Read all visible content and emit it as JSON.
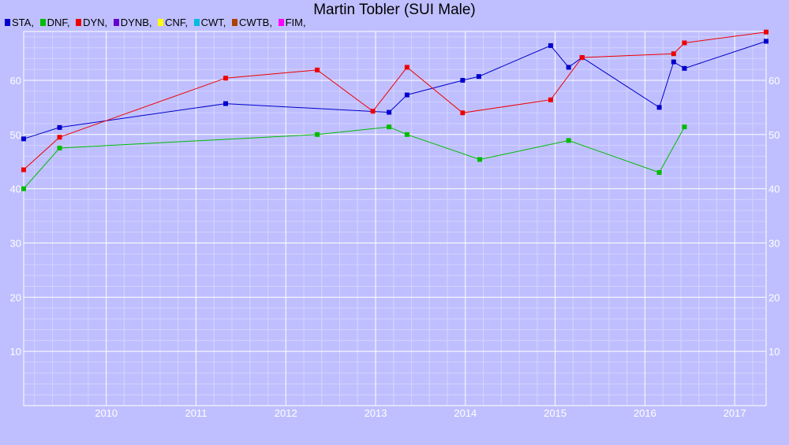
{
  "chart_data": {
    "type": "line",
    "title": "Martin Tobler (SUI Male)",
    "legend": [
      {
        "name": "STA,",
        "color": "#0000cc"
      },
      {
        "name": "DNF,",
        "color": "#00bb00"
      },
      {
        "name": "DYN,",
        "color": "#ee0000"
      },
      {
        "name": "DYNB,",
        "color": "#6600cc"
      },
      {
        "name": "CNF,",
        "color": "#ffff00"
      },
      {
        "name": "CWT,",
        "color": "#00bbdd"
      },
      {
        "name": "CWTB,",
        "color": "#aa4400"
      },
      {
        "name": "FIM,",
        "color": "#ff00ff"
      }
    ],
    "xlim": [
      2009.08,
      2017.35
    ],
    "ylim": [
      0,
      69
    ],
    "x_ticks": [
      2010,
      2011,
      2012,
      2013,
      2014,
      2015,
      2016,
      2017
    ],
    "y_ticks": [
      10,
      20,
      30,
      40,
      50,
      60
    ],
    "legend_position": "top-left",
    "grid": true,
    "series": [
      {
        "name": "STA",
        "color": "#0000cc",
        "points": [
          [
            2009.08,
            49.2
          ],
          [
            2009.48,
            51.3
          ],
          [
            2011.33,
            55.7
          ],
          [
            2013.15,
            54.1
          ],
          [
            2013.35,
            57.3
          ],
          [
            2013.97,
            60.0
          ],
          [
            2014.15,
            60.7
          ],
          [
            2014.95,
            66.4
          ],
          [
            2015.15,
            62.4
          ],
          [
            2015.3,
            64.2
          ],
          [
            2016.16,
            55.0
          ],
          [
            2016.32,
            63.4
          ],
          [
            2016.44,
            62.2
          ],
          [
            2017.35,
            67.2
          ]
        ]
      },
      {
        "name": "DNF",
        "color": "#00bb00",
        "points": [
          [
            2009.08,
            40.0
          ],
          [
            2009.48,
            47.5
          ],
          [
            2012.35,
            50.0
          ],
          [
            2013.15,
            51.4
          ],
          [
            2013.35,
            50.0
          ],
          [
            2014.16,
            45.4
          ],
          [
            2015.15,
            48.9
          ],
          [
            2016.16,
            43.0
          ],
          [
            2016.44,
            51.4
          ]
        ]
      },
      {
        "name": "DYN",
        "color": "#ee0000",
        "points": [
          [
            2009.08,
            43.5
          ],
          [
            2009.48,
            49.5
          ],
          [
            2011.33,
            60.4
          ],
          [
            2012.35,
            61.9
          ],
          [
            2012.97,
            54.3
          ],
          [
            2013.35,
            62.4
          ],
          [
            2013.97,
            54.0
          ],
          [
            2014.95,
            56.4
          ],
          [
            2015.3,
            64.2
          ],
          [
            2016.32,
            64.9
          ],
          [
            2016.44,
            66.9
          ],
          [
            2017.35,
            68.9
          ]
        ]
      }
    ]
  }
}
